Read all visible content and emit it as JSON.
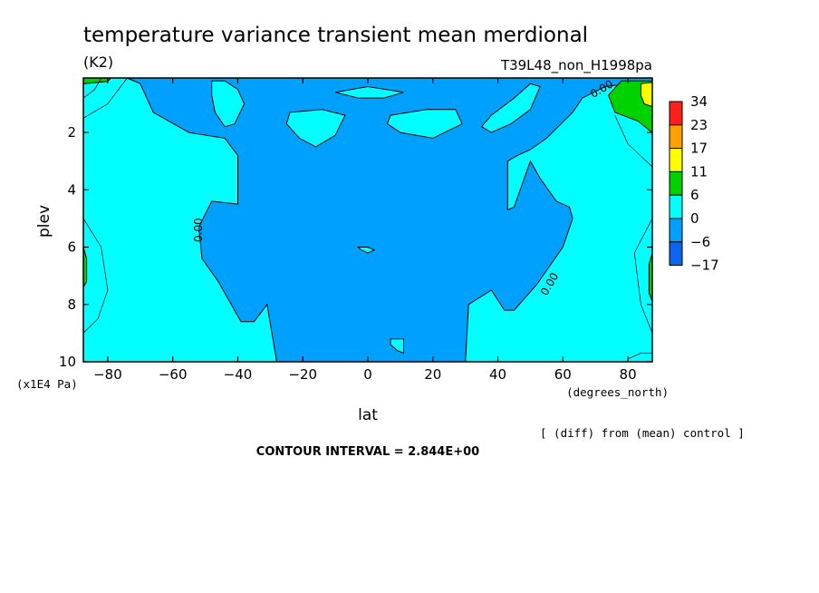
{
  "header": {
    "title": "temperature variance transient mean merdional",
    "units": "(K2)",
    "run_name": "T39L48_non_H1998pa"
  },
  "footer": {
    "diff_note": "[ (diff) from (mean) control ]",
    "contour_interval": "CONTOUR INTERVAL = 2.844E+00"
  },
  "colors": {
    "c_lt_neg6": "#0a64f0",
    "c_neg6_0": "#00a0ff",
    "c_0_6": "#00ffff",
    "c_6_11": "#00d200",
    "c_11_17": "#ffff00",
    "c_17_23": "#ffa000",
    "c_23_34": "#ff1e1e"
  },
  "chart_data": {
    "type": "heatmap",
    "title": "temperature variance transient mean merdional",
    "xlabel": "lat",
    "xunits": "(degrees_north)",
    "ylabel": "plev",
    "yunits": "(x1E4 Pa)",
    "xlim": [
      -87.5,
      87.5
    ],
    "ylim": [
      0.1,
      10
    ],
    "y_inverted": true,
    "x_ticks": [
      -80,
      -60,
      -40,
      -20,
      0,
      20,
      40,
      60,
      80
    ],
    "x_tick_labels": [
      "−80",
      "−60",
      "−40",
      "−20",
      "0",
      "20",
      "40",
      "60",
      "80"
    ],
    "y_ticks": [
      2,
      4,
      6,
      8,
      10
    ],
    "y_tick_labels": [
      "2",
      "4",
      "6",
      "8",
      "10"
    ],
    "colorbar": {
      "levels": [
        "34",
        "23",
        "17",
        "11",
        "6",
        "0",
        "−6",
        "−17"
      ],
      "colors": [
        "#ff1e1e",
        "#ffa000",
        "#ffff00",
        "#00d200",
        "#00ffff",
        "#00a0ff",
        "#0a64f0"
      ]
    },
    "contour_labels": [
      {
        "text": "0.00",
        "lat": -52,
        "plev": 5.4,
        "rotate": -90
      },
      {
        "text": "0.00",
        "lat": 56,
        "plev": 7.3,
        "rotate": -60
      },
      {
        "text": "0.00",
        "lat": 72,
        "plev": 0.5,
        "rotate": -30
      }
    ],
    "regions": [
      {
        "name": "central-negative",
        "band": "c_neg6_0",
        "closed": true,
        "points": [
          [
            -74,
            0.1
          ],
          [
            -70,
            0.3
          ],
          [
            -66,
            1.3
          ],
          [
            -55,
            2.0
          ],
          [
            -44,
            2.2
          ],
          [
            -40,
            2.8
          ],
          [
            -40,
            4.5
          ],
          [
            -48,
            4.4
          ],
          [
            -52,
            5.3
          ],
          [
            -51,
            6.4
          ],
          [
            -46,
            7.2
          ],
          [
            -39,
            8.6
          ],
          [
            -35,
            8.6
          ],
          [
            -31,
            8.0
          ],
          [
            -28,
            10
          ],
          [
            30,
            10
          ],
          [
            31,
            8.0
          ],
          [
            38,
            7.5
          ],
          [
            42,
            8.2
          ],
          [
            45,
            8.2
          ],
          [
            52,
            7.3
          ],
          [
            60,
            6.0
          ],
          [
            63,
            5.0
          ],
          [
            62,
            4.6
          ],
          [
            58,
            4.4
          ],
          [
            53,
            3.6
          ],
          [
            50,
            3.0
          ],
          [
            45,
            4.6
          ],
          [
            43,
            4.7
          ],
          [
            43,
            3.0
          ],
          [
            46,
            2.8
          ],
          [
            50,
            2.6
          ],
          [
            55,
            2.2
          ],
          [
            63,
            1.3
          ],
          [
            66,
            0.8
          ],
          [
            73,
            0.4
          ],
          [
            80,
            0.3
          ],
          [
            87.5,
            0.2
          ],
          [
            87.5,
            0.1
          ]
        ]
      },
      {
        "name": "sh-upper-blob",
        "band": "c_0_6",
        "closed": true,
        "points": [
          [
            -48,
            0.2
          ],
          [
            -44,
            0.2
          ],
          [
            -40,
            0.5
          ],
          [
            -38,
            1.0
          ],
          [
            -41,
            1.7
          ],
          [
            -44,
            1.8
          ],
          [
            -47,
            1.3
          ],
          [
            -48,
            0.7
          ]
        ]
      },
      {
        "name": "eq-top-blob",
        "band": "c_0_6",
        "closed": true,
        "points": [
          [
            -10,
            0.6
          ],
          [
            0,
            0.4
          ],
          [
            11,
            0.6
          ],
          [
            5,
            0.8
          ],
          [
            -3,
            0.8
          ]
        ]
      },
      {
        "name": "sh-mid-blob",
        "band": "c_0_6",
        "closed": true,
        "points": [
          [
            -24,
            1.3
          ],
          [
            -14,
            1.2
          ],
          [
            -7,
            1.4
          ],
          [
            -10,
            2.1
          ],
          [
            -16,
            2.5
          ],
          [
            -21,
            2.2
          ],
          [
            -25,
            1.7
          ]
        ]
      },
      {
        "name": "nh-mid-blob",
        "band": "c_0_6",
        "closed": true,
        "points": [
          [
            7,
            1.4
          ],
          [
            18,
            1.2
          ],
          [
            27,
            1.2
          ],
          [
            29,
            1.7
          ],
          [
            20,
            2.2
          ],
          [
            10,
            2.0
          ],
          [
            6,
            1.7
          ]
        ]
      },
      {
        "name": "nh-upper-blob",
        "band": "c_0_6",
        "closed": true,
        "points": [
          [
            35,
            1.8
          ],
          [
            38,
            1.4
          ],
          [
            45,
            0.8
          ],
          [
            50,
            0.3
          ],
          [
            53,
            0.4
          ],
          [
            50,
            1.2
          ],
          [
            44,
            1.7
          ],
          [
            38,
            2.0
          ]
        ]
      },
      {
        "name": "eq-small-blob",
        "band": "c_0_6",
        "closed": true,
        "points": [
          [
            -3,
            6.0
          ],
          [
            0,
            6.0
          ],
          [
            2,
            6.1
          ],
          [
            0,
            6.2
          ],
          [
            -2,
            6.1
          ]
        ]
      },
      {
        "name": "eq-bottom-blob",
        "band": "c_0_6",
        "closed": true,
        "points": [
          [
            7,
            9.2
          ],
          [
            11,
            9.2
          ],
          [
            11,
            9.7
          ],
          [
            9,
            9.6
          ],
          [
            7,
            9.4
          ]
        ]
      },
      {
        "name": "nh-top-positive",
        "band": "c_6_11",
        "closed": true,
        "points": [
          [
            74,
            0.7
          ],
          [
            78,
            0.2
          ],
          [
            87.5,
            0.2
          ],
          [
            87.5,
            2.0
          ],
          [
            83,
            1.6
          ],
          [
            76,
            1.3
          ]
        ]
      },
      {
        "name": "nh-top-yellow",
        "band": "c_11_17",
        "closed": true,
        "points": [
          [
            84,
            0.3
          ],
          [
            87.5,
            0.25
          ],
          [
            87.5,
            1.1
          ],
          [
            85,
            1.0
          ],
          [
            84,
            0.7
          ]
        ]
      },
      {
        "name": "sh-top-positive",
        "band": "c_6_11",
        "closed": true,
        "points": [
          [
            -87.5,
            0.1
          ],
          [
            -79,
            0.1
          ],
          [
            -80,
            0.22
          ],
          [
            -87.5,
            0.3
          ]
        ]
      },
      {
        "name": "sh-left-positive",
        "band": "c_6_11",
        "closed": true,
        "points": [
          [
            -87.5,
            6.0
          ],
          [
            -86.5,
            6.4
          ],
          [
            -86.5,
            7.2
          ],
          [
            -87.5,
            7.4
          ]
        ]
      },
      {
        "name": "nh-right-positive",
        "band": "c_6_11",
        "closed": true,
        "points": [
          [
            87.5,
            6.2
          ],
          [
            86.5,
            6.6
          ],
          [
            86.5,
            7.6
          ],
          [
            87.5,
            7.9
          ]
        ]
      }
    ],
    "thin_lines": [
      {
        "name": "sh-line-1",
        "points": [
          [
            -87.5,
            5.0
          ],
          [
            -82,
            6.0
          ],
          [
            -80,
            7.5
          ],
          [
            -83,
            8.5
          ],
          [
            -87.5,
            9.0
          ]
        ]
      },
      {
        "name": "sh-line-2",
        "points": [
          [
            -82,
            0.1
          ],
          [
            -84,
            0.5
          ],
          [
            -87.5,
            0.8
          ]
        ]
      },
      {
        "name": "sh-line-3",
        "points": [
          [
            -74,
            0.1
          ],
          [
            -80,
            1.0
          ],
          [
            -87.5,
            1.5
          ]
        ]
      },
      {
        "name": "nh-line-1",
        "points": [
          [
            76,
            1.4
          ],
          [
            80,
            2.4
          ],
          [
            87.5,
            3.2
          ]
        ]
      },
      {
        "name": "nh-line-2",
        "points": [
          [
            87.5,
            5.0
          ],
          [
            82,
            6.2
          ],
          [
            84,
            8.0
          ],
          [
            87.5,
            9.0
          ]
        ]
      },
      {
        "name": "nh-line-3",
        "points": [
          [
            80,
            9.9
          ],
          [
            84,
            9.7
          ],
          [
            87.5,
            9.7
          ]
        ]
      }
    ]
  }
}
